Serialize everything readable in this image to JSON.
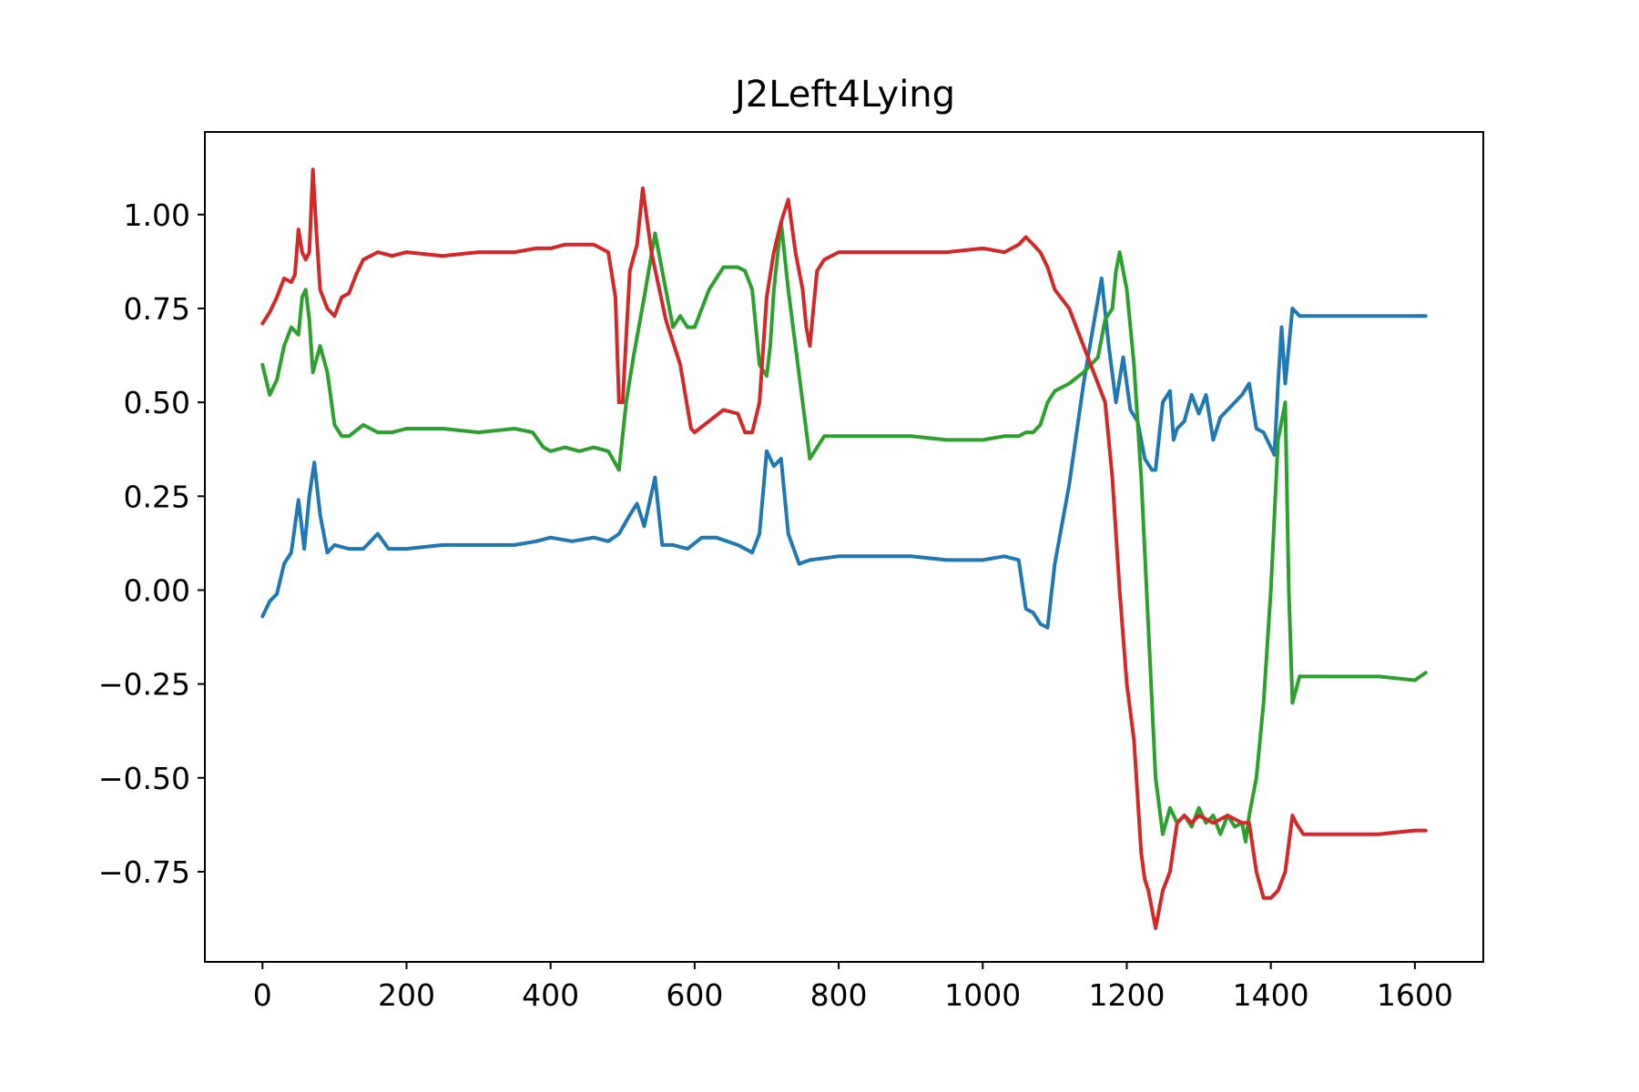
{
  "chart_data": {
    "type": "line",
    "title": "J2Left4Lying",
    "xlabel": "",
    "ylabel": "",
    "xlim": [
      -80,
      1695
    ],
    "ylim": [
      -0.99,
      1.22
    ],
    "xticks": [
      0,
      200,
      400,
      600,
      800,
      1000,
      1200,
      1400,
      1600
    ],
    "xtick_labels": [
      "0",
      "200",
      "400",
      "600",
      "800",
      "1000",
      "1200",
      "1400",
      "1600"
    ],
    "yticks": [
      1.0,
      0.75,
      0.5,
      0.25,
      0.0,
      -0.25,
      -0.5,
      -0.75
    ],
    "ytick_labels": [
      "1.00",
      "0.75",
      "0.50",
      "0.25",
      "0.00",
      "−0.25",
      "−0.50",
      "−0.75"
    ],
    "grid": false,
    "legend": "none",
    "series": [
      {
        "color": "#1f77b4",
        "x": [
          0,
          10,
          20,
          30,
          40,
          50,
          58,
          65,
          72,
          80,
          90,
          100,
          120,
          140,
          160,
          175,
          200,
          250,
          300,
          350,
          380,
          400,
          430,
          460,
          480,
          495,
          510,
          520,
          530,
          545,
          555,
          570,
          590,
          610,
          630,
          660,
          680,
          690,
          700,
          710,
          720,
          730,
          745,
          760,
          800,
          850,
          900,
          950,
          1000,
          1030,
          1050,
          1060,
          1070,
          1080,
          1090,
          1100,
          1120,
          1140,
          1155,
          1165,
          1175,
          1185,
          1195,
          1205,
          1215,
          1225,
          1235,
          1240,
          1250,
          1260,
          1265,
          1270,
          1280,
          1290,
          1300,
          1310,
          1320,
          1330,
          1340,
          1360,
          1370,
          1380,
          1390,
          1400,
          1405,
          1410,
          1415,
          1420,
          1430,
          1440,
          1460,
          1500,
          1550,
          1600,
          1615
        ],
        "values": [
          -0.07,
          -0.03,
          -0.01,
          0.07,
          0.1,
          0.24,
          0.11,
          0.25,
          0.34,
          0.2,
          0.1,
          0.12,
          0.11,
          0.11,
          0.15,
          0.11,
          0.11,
          0.12,
          0.12,
          0.12,
          0.13,
          0.14,
          0.13,
          0.14,
          0.13,
          0.15,
          0.2,
          0.23,
          0.17,
          0.3,
          0.12,
          0.12,
          0.11,
          0.14,
          0.14,
          0.12,
          0.1,
          0.15,
          0.37,
          0.33,
          0.35,
          0.15,
          0.07,
          0.08,
          0.09,
          0.09,
          0.09,
          0.08,
          0.08,
          0.09,
          0.08,
          -0.05,
          -0.06,
          -0.09,
          -0.1,
          0.07,
          0.28,
          0.55,
          0.72,
          0.83,
          0.65,
          0.5,
          0.62,
          0.48,
          0.45,
          0.35,
          0.32,
          0.32,
          0.5,
          0.53,
          0.4,
          0.43,
          0.45,
          0.52,
          0.47,
          0.52,
          0.4,
          0.46,
          0.48,
          0.52,
          0.55,
          0.43,
          0.42,
          0.38,
          0.36,
          0.55,
          0.7,
          0.55,
          0.75,
          0.73,
          0.73,
          0.73,
          0.73,
          0.73,
          0.73
        ]
      },
      {
        "color": "#2ca02c",
        "x": [
          0,
          10,
          20,
          30,
          40,
          50,
          55,
          60,
          65,
          70,
          80,
          90,
          100,
          110,
          120,
          140,
          160,
          180,
          200,
          250,
          300,
          350,
          375,
          390,
          400,
          420,
          440,
          460,
          480,
          495,
          505,
          515,
          530,
          545,
          560,
          570,
          580,
          590,
          600,
          620,
          640,
          650,
          660,
          670,
          680,
          690,
          700,
          705,
          710,
          720,
          730,
          740,
          750,
          760,
          780,
          800,
          850,
          900,
          950,
          1000,
          1030,
          1050,
          1060,
          1070,
          1080,
          1090,
          1100,
          1120,
          1140,
          1160,
          1170,
          1180,
          1185,
          1190,
          1200,
          1210,
          1220,
          1230,
          1240,
          1250,
          1260,
          1270,
          1280,
          1290,
          1300,
          1310,
          1320,
          1330,
          1340,
          1350,
          1360,
          1365,
          1370,
          1380,
          1390,
          1400,
          1410,
          1420,
          1425,
          1430,
          1440,
          1460,
          1500,
          1550,
          1600,
          1615
        ],
        "values": [
          0.6,
          0.52,
          0.56,
          0.65,
          0.7,
          0.68,
          0.78,
          0.8,
          0.72,
          0.58,
          0.65,
          0.58,
          0.44,
          0.41,
          0.41,
          0.44,
          0.42,
          0.42,
          0.43,
          0.43,
          0.42,
          0.43,
          0.42,
          0.38,
          0.37,
          0.38,
          0.37,
          0.38,
          0.37,
          0.32,
          0.5,
          0.62,
          0.78,
          0.95,
          0.8,
          0.7,
          0.73,
          0.7,
          0.7,
          0.8,
          0.86,
          0.86,
          0.86,
          0.85,
          0.8,
          0.6,
          0.57,
          0.65,
          0.8,
          0.98,
          0.8,
          0.65,
          0.5,
          0.35,
          0.41,
          0.41,
          0.41,
          0.41,
          0.4,
          0.4,
          0.41,
          0.41,
          0.42,
          0.42,
          0.44,
          0.5,
          0.53,
          0.55,
          0.58,
          0.62,
          0.72,
          0.75,
          0.85,
          0.9,
          0.8,
          0.6,
          0.3,
          -0.1,
          -0.5,
          -0.65,
          -0.58,
          -0.62,
          -0.6,
          -0.63,
          -0.58,
          -0.62,
          -0.6,
          -0.65,
          -0.6,
          -0.63,
          -0.62,
          -0.67,
          -0.6,
          -0.5,
          -0.3,
          0.0,
          0.4,
          0.5,
          0.0,
          -0.3,
          -0.23,
          -0.23,
          -0.23,
          -0.23,
          -0.24,
          -0.22
        ]
      },
      {
        "color": "#d62728",
        "x": [
          0,
          10,
          20,
          30,
          40,
          45,
          50,
          55,
          60,
          65,
          70,
          75,
          80,
          90,
          100,
          110,
          120,
          130,
          140,
          160,
          180,
          200,
          250,
          300,
          350,
          380,
          400,
          420,
          440,
          460,
          470,
          480,
          490,
          495,
          500,
          510,
          520,
          528,
          540,
          560,
          580,
          595,
          600,
          620,
          640,
          660,
          670,
          680,
          690,
          700,
          710,
          720,
          730,
          740,
          750,
          755,
          760,
          770,
          780,
          800,
          850,
          900,
          950,
          1000,
          1030,
          1050,
          1060,
          1070,
          1080,
          1090,
          1100,
          1120,
          1140,
          1160,
          1170,
          1180,
          1190,
          1200,
          1210,
          1220,
          1225,
          1230,
          1240,
          1250,
          1260,
          1270,
          1280,
          1290,
          1300,
          1320,
          1340,
          1360,
          1370,
          1380,
          1390,
          1400,
          1410,
          1420,
          1430,
          1435,
          1445,
          1460,
          1500,
          1550,
          1600,
          1615
        ],
        "values": [
          0.71,
          0.74,
          0.78,
          0.83,
          0.82,
          0.84,
          0.96,
          0.9,
          0.88,
          0.9,
          1.12,
          0.95,
          0.8,
          0.75,
          0.73,
          0.78,
          0.79,
          0.84,
          0.88,
          0.9,
          0.89,
          0.9,
          0.89,
          0.9,
          0.9,
          0.91,
          0.91,
          0.92,
          0.92,
          0.92,
          0.91,
          0.9,
          0.78,
          0.5,
          0.5,
          0.85,
          0.92,
          1.07,
          0.9,
          0.72,
          0.6,
          0.43,
          0.42,
          0.45,
          0.48,
          0.47,
          0.42,
          0.42,
          0.5,
          0.78,
          0.9,
          0.98,
          1.04,
          0.9,
          0.8,
          0.7,
          0.65,
          0.85,
          0.88,
          0.9,
          0.9,
          0.9,
          0.9,
          0.91,
          0.9,
          0.92,
          0.94,
          0.92,
          0.9,
          0.86,
          0.8,
          0.75,
          0.65,
          0.55,
          0.5,
          0.3,
          0.0,
          -0.25,
          -0.4,
          -0.7,
          -0.77,
          -0.8,
          -0.9,
          -0.8,
          -0.75,
          -0.62,
          -0.6,
          -0.62,
          -0.6,
          -0.62,
          -0.6,
          -0.62,
          -0.62,
          -0.75,
          -0.82,
          -0.82,
          -0.8,
          -0.75,
          -0.6,
          -0.62,
          -0.65,
          -0.65,
          -0.65,
          -0.65,
          -0.64,
          -0.64
        ]
      }
    ]
  }
}
